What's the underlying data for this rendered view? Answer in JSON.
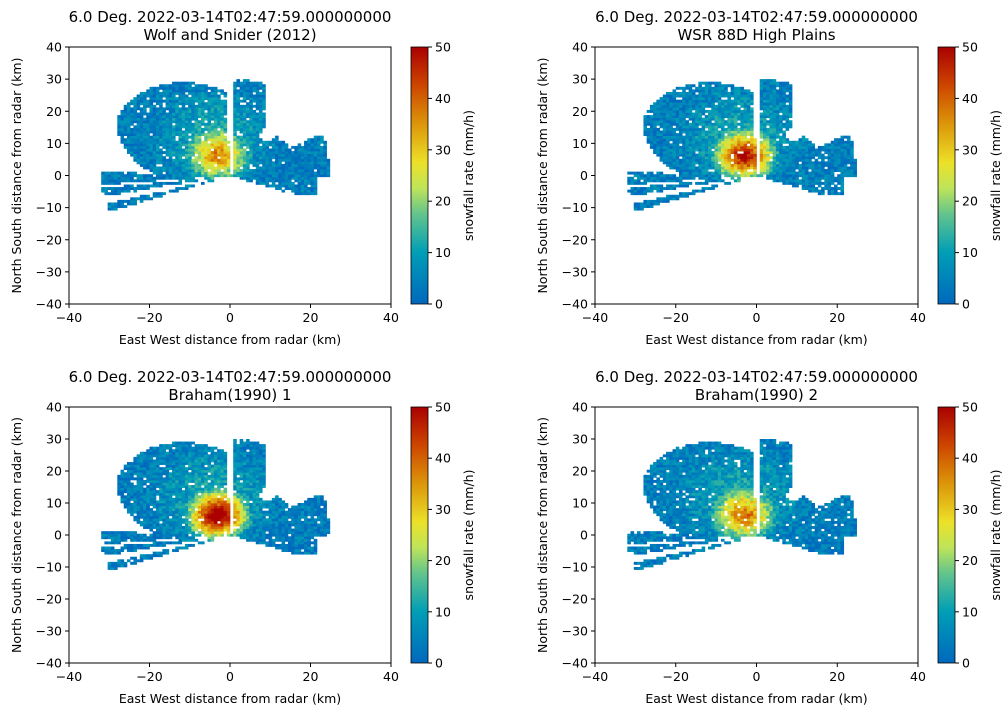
{
  "chart_data": [
    {
      "type": "heatmap",
      "title": "6.0 Deg. 2022-03-14T02:47:59.000000000",
      "subtitle": "Wolf and Snider (2012)",
      "xlabel": "East West distance from radar (km)",
      "ylabel": "North South distance from radar (km)",
      "xlim": [
        -40,
        40
      ],
      "ylim": [
        -40,
        40
      ],
      "xticks": [
        -40,
        -20,
        0,
        20,
        40
      ],
      "yticks": [
        -40,
        -30,
        -20,
        -10,
        0,
        10,
        20,
        30,
        40
      ],
      "colorbar": {
        "label": "snowfall rate (mm/h)",
        "range": [
          0,
          50
        ],
        "ticks": [
          0,
          10,
          20,
          30,
          40,
          50
        ]
      },
      "intensity": 0.45
    },
    {
      "type": "heatmap",
      "title": "6.0 Deg. 2022-03-14T02:47:59.000000000",
      "subtitle": "WSR 88D High Plains",
      "xlabel": "East West distance from radar (km)",
      "ylabel": "North South distance from radar (km)",
      "xlim": [
        -40,
        40
      ],
      "ylim": [
        -40,
        40
      ],
      "xticks": [
        -40,
        -20,
        0,
        20,
        40
      ],
      "yticks": [
        -40,
        -30,
        -20,
        -10,
        0,
        10,
        20,
        30,
        40
      ],
      "colorbar": {
        "label": "snowfall rate (mm/h)",
        "range": [
          0,
          50
        ],
        "ticks": [
          0,
          10,
          20,
          30,
          40,
          50
        ]
      },
      "intensity": 0.75
    },
    {
      "type": "heatmap",
      "title": "6.0 Deg. 2022-03-14T02:47:59.000000000",
      "subtitle": "Braham(1990) 1",
      "xlabel": "East West distance from radar (km)",
      "ylabel": "North South distance from radar (km)",
      "xlim": [
        -40,
        40
      ],
      "ylim": [
        -40,
        40
      ],
      "xticks": [
        -40,
        -20,
        0,
        20,
        40
      ],
      "yticks": [
        -40,
        -30,
        -20,
        -10,
        0,
        10,
        20,
        30,
        40
      ],
      "colorbar": {
        "label": "snowfall rate (mm/h)",
        "range": [
          0,
          50
        ],
        "ticks": [
          0,
          10,
          20,
          30,
          40,
          50
        ]
      },
      "intensity": 0.9
    },
    {
      "type": "heatmap",
      "title": "6.0 Deg. 2022-03-14T02:47:59.000000000",
      "subtitle": "Braham(1990) 2",
      "xlabel": "East West distance from radar (km)",
      "ylabel": "North South distance from radar (km)",
      "xlim": [
        -40,
        40
      ],
      "ylim": [
        -40,
        40
      ],
      "xticks": [
        -40,
        -20,
        0,
        20,
        40
      ],
      "yticks": [
        -40,
        -30,
        -20,
        -10,
        0,
        10,
        20,
        30,
        40
      ],
      "colorbar": {
        "label": "snowfall rate (mm/h)",
        "range": [
          0,
          50
        ],
        "ticks": [
          0,
          10,
          20,
          30,
          40,
          50
        ]
      },
      "intensity": 0.5
    }
  ]
}
